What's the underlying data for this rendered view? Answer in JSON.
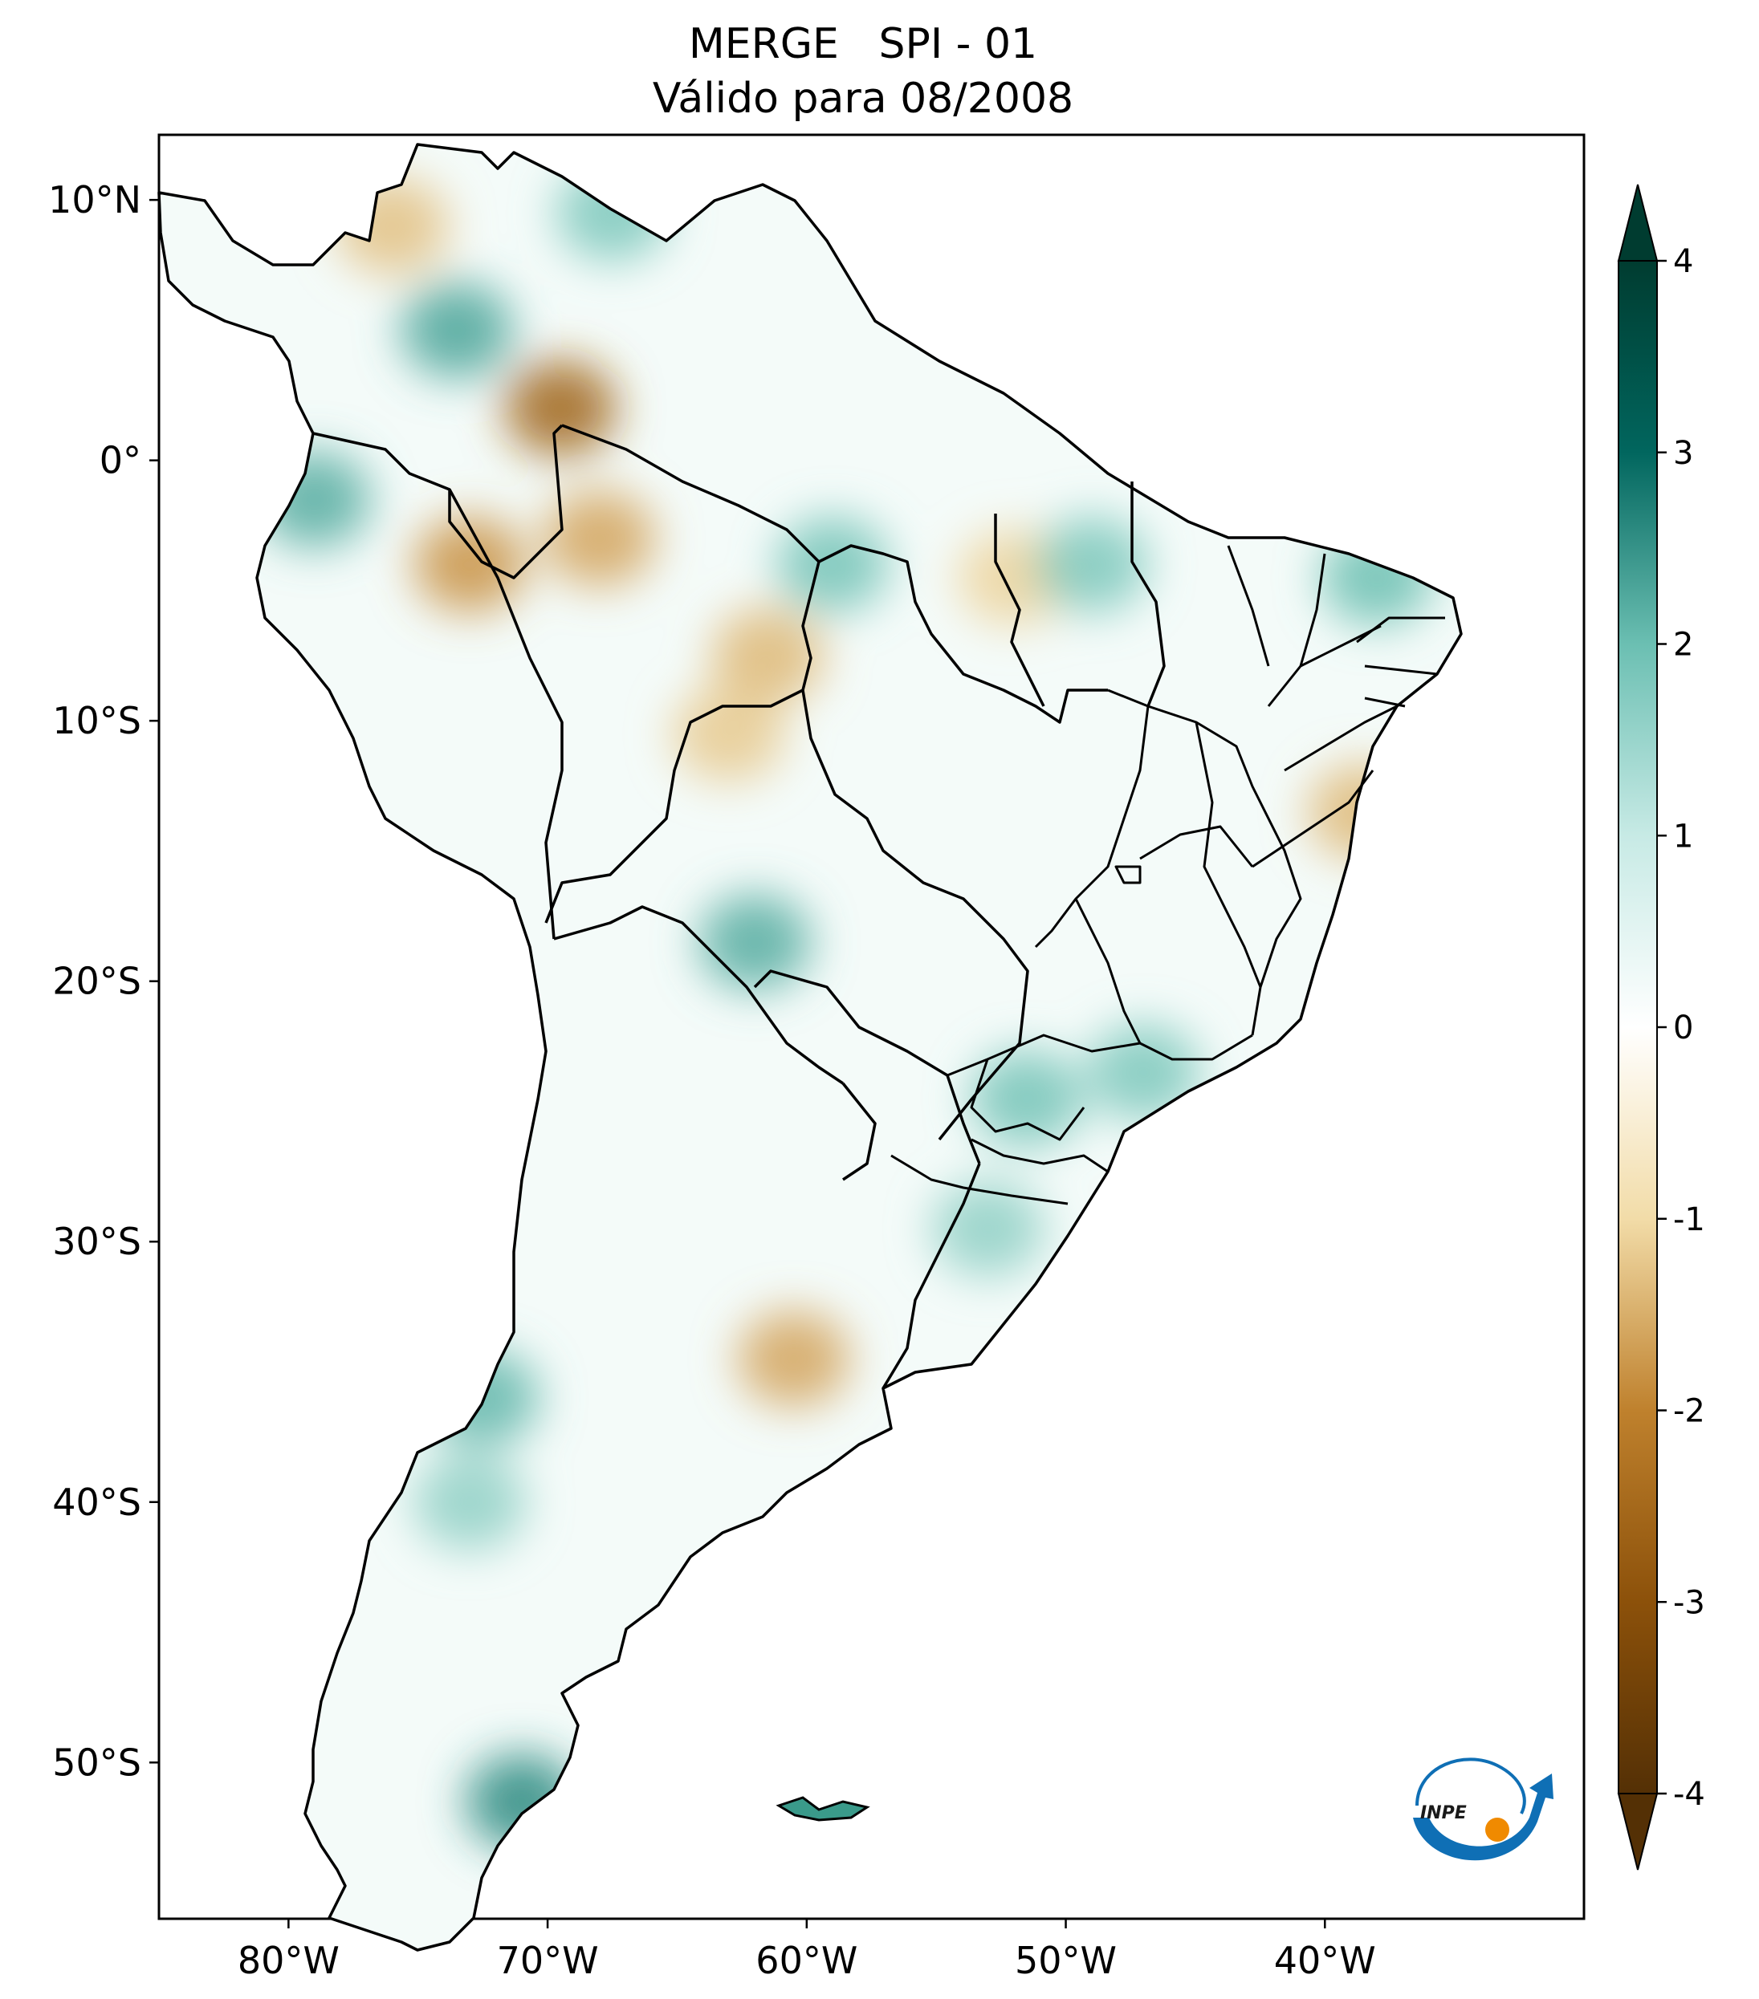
{
  "figure": {
    "title_line1": "MERGE   SPI - 01",
    "title_line2": "Válido para 08/2008"
  },
  "map": {
    "projection": "PlateCarree",
    "lon_range": [
      -85,
      -30
    ],
    "lat_range": [
      -56,
      12.5
    ],
    "lon_ticks": [
      {
        "value": -80,
        "label": "80°W"
      },
      {
        "value": -70,
        "label": "70°W"
      },
      {
        "value": -60,
        "label": "60°W"
      },
      {
        "value": -50,
        "label": "50°W"
      },
      {
        "value": -40,
        "label": "40°W"
      }
    ],
    "lat_ticks": [
      {
        "value": 10,
        "label": "10°N"
      },
      {
        "value": 0,
        "label": "0°"
      },
      {
        "value": -10,
        "label": "10°S"
      },
      {
        "value": -20,
        "label": "20°S"
      },
      {
        "value": -30,
        "label": "30°S"
      },
      {
        "value": -40,
        "label": "40°S"
      },
      {
        "value": -50,
        "label": "50°S"
      }
    ]
  },
  "colorbar": {
    "colormap": "BrBG",
    "range": [
      -4,
      4
    ],
    "extend": "both",
    "ticks": [
      {
        "value": 4,
        "label": "4"
      },
      {
        "value": 3,
        "label": "3"
      },
      {
        "value": 2,
        "label": "2"
      },
      {
        "value": 1,
        "label": "1"
      },
      {
        "value": 0,
        "label": "0"
      },
      {
        "value": -1,
        "label": "-1"
      },
      {
        "value": -2,
        "label": "-2"
      },
      {
        "value": -3,
        "label": "-3"
      },
      {
        "value": -4,
        "label": "-4"
      }
    ]
  },
  "logo": {
    "name": "inpe-logo",
    "text": "INPE",
    "colors": {
      "arrow": "#0f6fb5",
      "dot": "#f08a00"
    }
  },
  "anomaly_regions": [
    {
      "lon": -69.5,
      "lat": 2.0,
      "value": -2.6
    },
    {
      "lon": -68.0,
      "lat": -3.0,
      "value": -1.6
    },
    {
      "lon": -73.0,
      "lat": -4.0,
      "value": -1.8
    },
    {
      "lon": -61.5,
      "lat": -7.5,
      "value": -1.4
    },
    {
      "lon": -63.0,
      "lat": -10.5,
      "value": -1.2
    },
    {
      "lon": -52.0,
      "lat": -4.5,
      "value": -1.1
    },
    {
      "lon": -38.5,
      "lat": -13.5,
      "value": -1.4
    },
    {
      "lon": -60.5,
      "lat": -34.5,
      "value": -1.6
    },
    {
      "lon": -76.0,
      "lat": 9.0,
      "value": -1.3
    },
    {
      "lon": -73.5,
      "lat": 5.0,
      "value": 2.3
    },
    {
      "lon": -79.0,
      "lat": -1.5,
      "value": 2.2
    },
    {
      "lon": -67.5,
      "lat": 9.5,
      "value": 1.8
    },
    {
      "lon": -59.0,
      "lat": -4.0,
      "value": 1.9
    },
    {
      "lon": -49.0,
      "lat": -4.0,
      "value": 1.8
    },
    {
      "lon": -38.0,
      "lat": -4.5,
      "value": 2.0
    },
    {
      "lon": -62.0,
      "lat": -18.5,
      "value": 2.2
    },
    {
      "lon": -47.0,
      "lat": -23.5,
      "value": 1.8
    },
    {
      "lon": -51.5,
      "lat": -24.5,
      "value": 1.9
    },
    {
      "lon": -53.0,
      "lat": -29.5,
      "value": 1.6
    },
    {
      "lon": -72.5,
      "lat": -36.0,
      "value": 2.1
    },
    {
      "lon": -73.0,
      "lat": -40.0,
      "value": 1.6
    },
    {
      "lon": -71.0,
      "lat": -51.5,
      "value": 2.6
    },
    {
      "lon": -59.0,
      "lat": -51.6,
      "value": 2.8
    }
  ]
}
